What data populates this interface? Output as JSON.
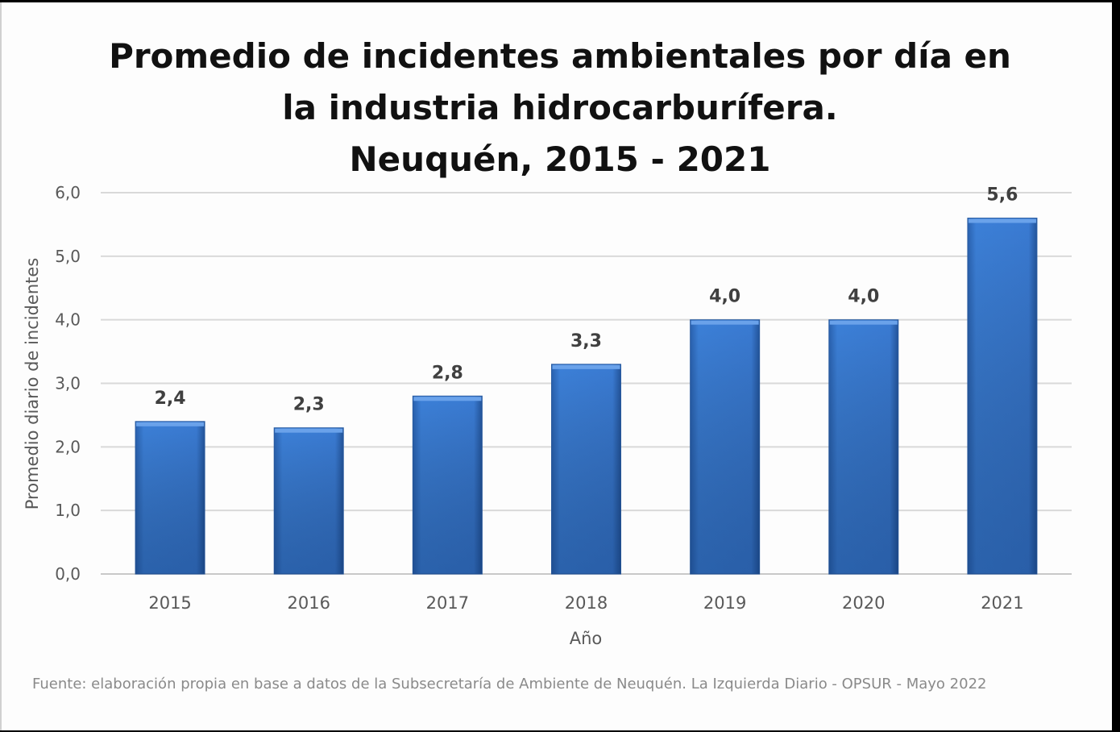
{
  "chart_data": {
    "type": "bar",
    "title_lines": [
      "Promedio de incidentes ambientales por día en",
      "la industria hidrocarburífera.",
      "Neuquén, 2015 - 2021"
    ],
    "categories": [
      "2015",
      "2016",
      "2017",
      "2018",
      "2019",
      "2020",
      "2021"
    ],
    "values": [
      2.4,
      2.3,
      2.8,
      3.3,
      4.0,
      4.0,
      5.6
    ],
    "data_labels": [
      "2,4",
      "2,3",
      "2,8",
      "3,3",
      "4,0",
      "4,0",
      "5,6"
    ],
    "xlabel": "Año",
    "ylabel": "Promedio diario de incidentes",
    "ylim": [
      0,
      6
    ],
    "yticks": [
      "0,0",
      "1,0",
      "2,0",
      "3,0",
      "4,0",
      "5,0",
      "6,0"
    ],
    "grid": true,
    "bar_color": "#3a7bd5",
    "source": "Fuente: elaboración propia en base a datos de la Subsecretaría de Ambiente de Neuquén. La Izquierda Diario - OPSUR - Mayo 2022"
  }
}
